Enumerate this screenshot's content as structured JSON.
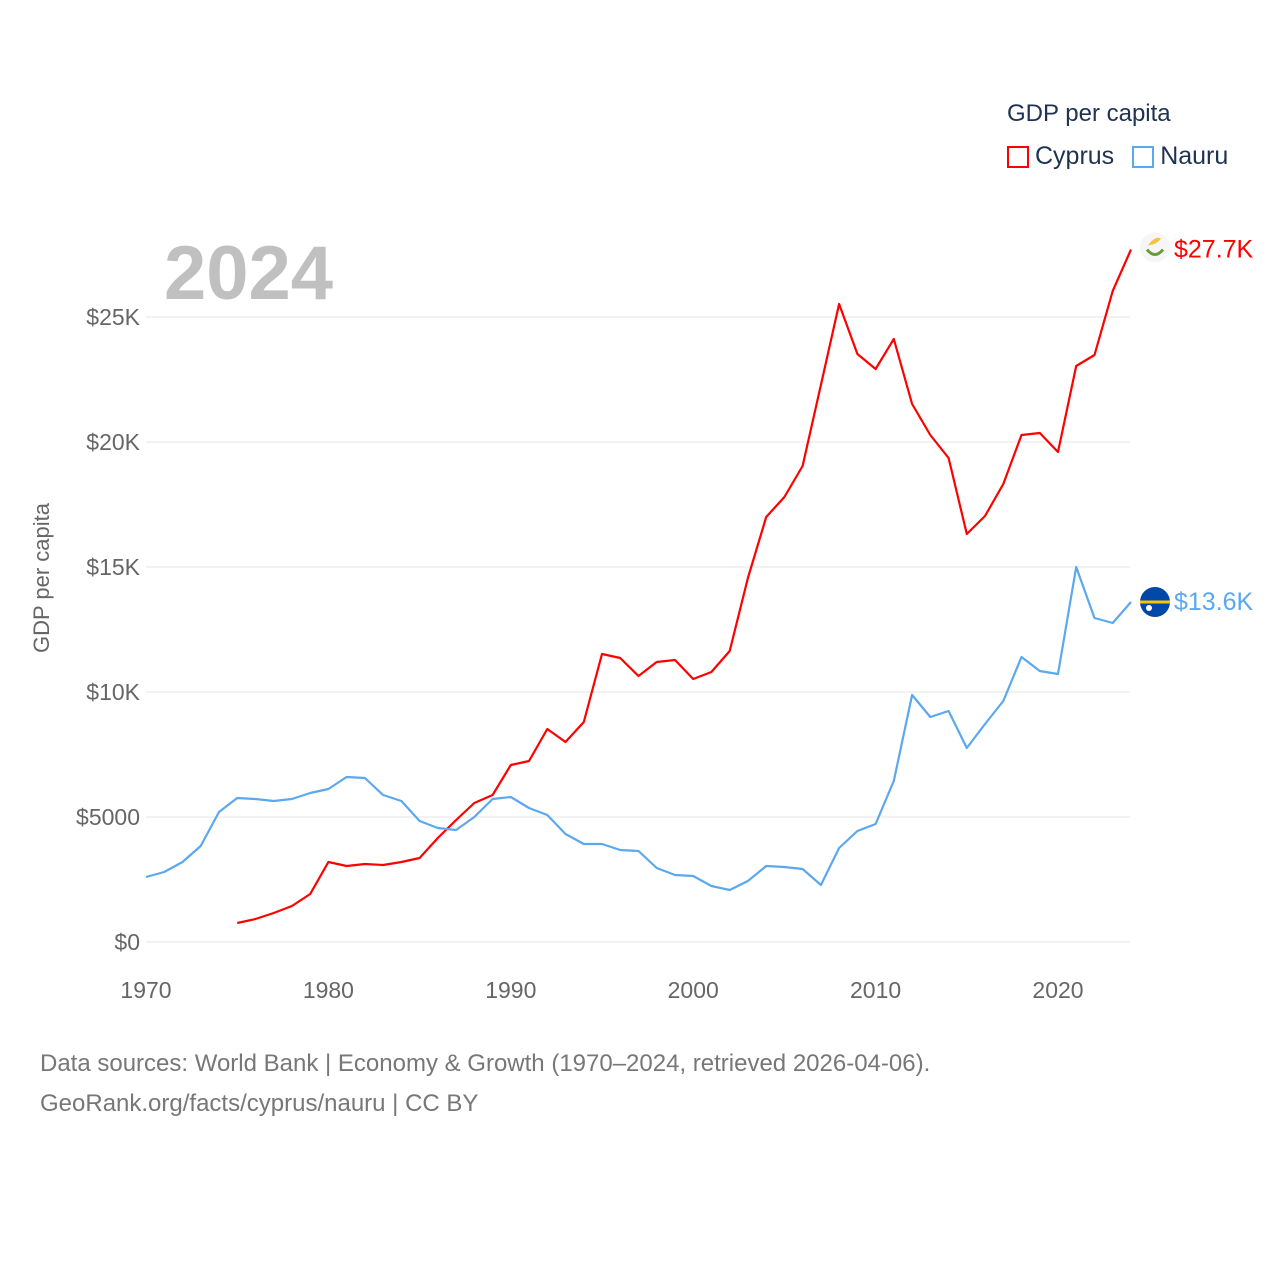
{
  "legend": {
    "title": "GDP per capita",
    "items": [
      {
        "name": "Cyprus",
        "color": "#ff0000"
      },
      {
        "name": "Nauru",
        "color": "#5ba8ee"
      }
    ]
  },
  "year_label": "2024",
  "sources": {
    "line1": "Data sources: World Bank | Economy & Growth (1970–2024, retrieved 2026-04-06).",
    "line2": "GeoRank.org/facts/cyprus/nauru | CC BY"
  },
  "chart_data": {
    "type": "line",
    "ylabel": "GDP per capita",
    "xlim": [
      1970,
      2024
    ],
    "ylim": [
      0,
      27700
    ],
    "xticks": [
      1970,
      1980,
      1990,
      2000,
      2010,
      2020
    ],
    "xtick_labels": [
      "1970",
      "1980",
      "1990",
      "2000",
      "2010",
      "2020"
    ],
    "yticks": [
      0,
      5000,
      10000,
      15000,
      20000,
      25000
    ],
    "ytick_labels": [
      "$0",
      "$5000",
      "$10K",
      "$15K",
      "$20K",
      "$25K"
    ],
    "grid": true,
    "legend_position": "top-right",
    "series": [
      {
        "name": "Cyprus",
        "color": "#ff0000",
        "end_label": "$27.7K",
        "start_year": 1975,
        "values": [
          760,
          920,
          1160,
          1440,
          1920,
          3200,
          3040,
          3120,
          3080,
          3200,
          3360,
          4160,
          4880,
          5560,
          5880,
          7080,
          7240,
          8520,
          8000,
          8800,
          11520,
          11360,
          10640,
          11200,
          11280,
          10520,
          10800,
          11640,
          14560,
          17000,
          17800,
          19040,
          22280,
          25520,
          23520,
          22920,
          24120,
          21520,
          20280,
          19360,
          16320,
          17040,
          18320,
          20280,
          20360,
          19600,
          23040,
          23480,
          26040,
          27700
        ]
      },
      {
        "name": "Nauru",
        "color": "#5ba8ee",
        "end_label": "$13.6K",
        "start_year": 1970,
        "values": [
          2600,
          2800,
          3200,
          3840,
          5200,
          5760,
          5720,
          5640,
          5720,
          5960,
          6120,
          6600,
          6560,
          5880,
          5640,
          4840,
          4560,
          4480,
          5000,
          5720,
          5800,
          5360,
          5080,
          4320,
          3920,
          3920,
          3680,
          3640,
          2960,
          2680,
          2640,
          2240,
          2080,
          2440,
          3040,
          3000,
          2920,
          2280,
          3760,
          4440,
          4720,
          6440,
          9880,
          9000,
          9240,
          7760,
          8720,
          9640,
          11400,
          10840,
          10720,
          15000,
          12960,
          12760,
          13600
        ]
      }
    ]
  }
}
